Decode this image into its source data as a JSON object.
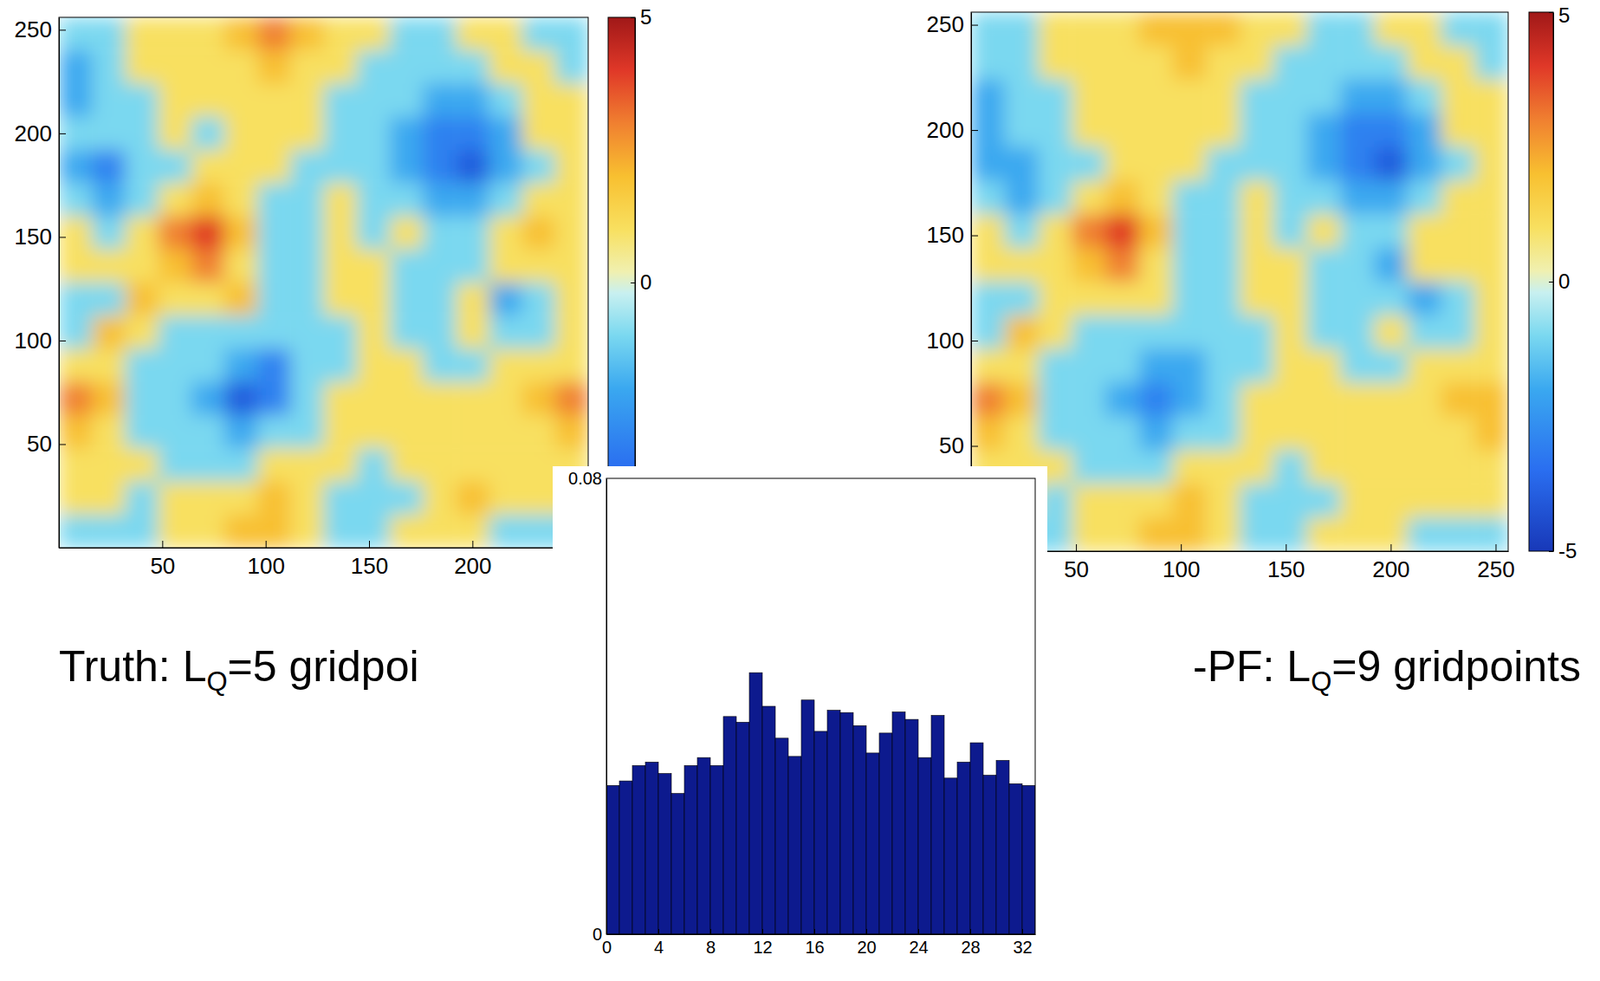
{
  "chart_data": [
    {
      "type": "heatmap",
      "label": [
        "Truth: L",
        "Q",
        "=5 gridpoi"
      ],
      "x": [
        8,
        24,
        40,
        56,
        72,
        88,
        104,
        120,
        136,
        152,
        168,
        184,
        200,
        216,
        232,
        248
      ],
      "y": [
        248,
        232,
        216,
        200,
        184,
        168,
        152,
        136,
        120,
        104,
        88,
        72,
        56,
        40,
        24,
        8
      ],
      "z": [
        [
          -1,
          -1,
          1,
          1,
          1,
          2,
          3,
          2,
          1,
          1,
          -1,
          -1,
          1,
          1,
          -1,
          -1
        ],
        [
          -2,
          -1,
          1,
          1,
          1,
          1,
          2,
          1,
          1,
          -1,
          -1,
          -1,
          -1,
          1,
          1,
          -1
        ],
        [
          -2,
          -1,
          -1,
          1,
          1,
          1,
          1,
          1,
          -1,
          -1,
          -1,
          -2,
          -2,
          -1,
          1,
          1
        ],
        [
          -1,
          -1,
          -1,
          1,
          -1,
          1,
          1,
          1,
          -1,
          -1,
          -2,
          -3,
          -3,
          -2,
          1,
          1
        ],
        [
          -2,
          -3,
          -1,
          -1,
          1,
          1,
          1,
          -1,
          -1,
          -1,
          -2,
          -3,
          -4,
          -2,
          -1,
          1
        ],
        [
          -1,
          -2,
          -1,
          1,
          2,
          1,
          -1,
          -1,
          1,
          -1,
          -1,
          -2,
          -2,
          -1,
          1,
          1
        ],
        [
          1,
          -1,
          1,
          3,
          4,
          2,
          -1,
          -1,
          1,
          -1,
          1,
          -1,
          -1,
          1,
          2,
          1
        ],
        [
          1,
          1,
          1,
          2,
          3,
          1,
          -1,
          -1,
          1,
          1,
          -1,
          -1,
          -1,
          1,
          1,
          1
        ],
        [
          -1,
          -1,
          2,
          1,
          1,
          2,
          -1,
          -1,
          1,
          1,
          -1,
          -1,
          1,
          -2,
          -1,
          1
        ],
        [
          -1,
          2,
          1,
          -1,
          -1,
          -1,
          -1,
          -1,
          -1,
          1,
          -1,
          -1,
          1,
          -1,
          -1,
          1
        ],
        [
          1,
          1,
          -1,
          -1,
          -1,
          -2,
          -3,
          -1,
          -1,
          1,
          1,
          -1,
          -1,
          1,
          1,
          1
        ],
        [
          3,
          2,
          -1,
          -1,
          -2,
          -4,
          -3,
          -1,
          1,
          1,
          1,
          1,
          1,
          1,
          2,
          3
        ],
        [
          2,
          1,
          -1,
          -1,
          -1,
          -2,
          -1,
          -1,
          1,
          1,
          1,
          1,
          1,
          1,
          1,
          2
        ],
        [
          1,
          1,
          1,
          -1,
          -1,
          -1,
          1,
          1,
          1,
          -1,
          1,
          1,
          1,
          1,
          1,
          1
        ],
        [
          1,
          1,
          -1,
          1,
          1,
          1,
          2,
          1,
          -1,
          -1,
          -1,
          1,
          2,
          1,
          1,
          1
        ],
        [
          -1,
          -1,
          -1,
          1,
          1,
          2,
          2,
          1,
          -1,
          -1,
          1,
          1,
          1,
          -1,
          -1,
          -1
        ]
      ],
      "xlim": [
        0,
        256
      ],
      "ylim": [
        0,
        256
      ],
      "xticks": [
        50,
        100,
        150,
        200
      ],
      "yticks": [
        50,
        100,
        150,
        200,
        250
      ],
      "colorbar_lim": [
        -5,
        5
      ],
      "colorbar_ticks": [
        5,
        0
      ]
    },
    {
      "type": "heatmap",
      "label": [
        "-PF: L",
        "Q",
        "=9 gridpoints"
      ],
      "x": [
        8,
        24,
        40,
        56,
        72,
        88,
        104,
        120,
        136,
        152,
        168,
        184,
        200,
        216,
        232,
        248
      ],
      "y": [
        248,
        232,
        216,
        200,
        184,
        168,
        152,
        136,
        120,
        104,
        88,
        72,
        56,
        40,
        24,
        8
      ],
      "z": [
        [
          -1,
          -1,
          1,
          1,
          1,
          2,
          2,
          2,
          1,
          1,
          -1,
          -1,
          1,
          1,
          -1,
          -1
        ],
        [
          -1,
          -1,
          1,
          1,
          1,
          1,
          2,
          1,
          1,
          -1,
          -1,
          -1,
          -1,
          1,
          1,
          -1
        ],
        [
          -2,
          -1,
          -1,
          1,
          1,
          1,
          1,
          1,
          -1,
          -1,
          -1,
          -2,
          -2,
          -1,
          1,
          1
        ],
        [
          -2,
          -1,
          -1,
          1,
          1,
          1,
          1,
          1,
          -1,
          -1,
          -2,
          -3,
          -3,
          -2,
          1,
          1
        ],
        [
          -2,
          -2,
          -1,
          -1,
          1,
          1,
          1,
          -1,
          -1,
          -1,
          -2,
          -3,
          -4,
          -2,
          -1,
          1
        ],
        [
          -1,
          -2,
          -1,
          1,
          2,
          1,
          -1,
          -1,
          1,
          -1,
          -1,
          -2,
          -2,
          -1,
          1,
          1
        ],
        [
          1,
          -1,
          1,
          3,
          4,
          2,
          -1,
          -1,
          1,
          -1,
          1,
          -1,
          -1,
          1,
          1,
          1
        ],
        [
          1,
          1,
          1,
          2,
          3,
          1,
          -1,
          -1,
          1,
          1,
          -1,
          -1,
          -2,
          1,
          1,
          1
        ],
        [
          -1,
          -1,
          1,
          1,
          1,
          1,
          -1,
          -1,
          1,
          1,
          -1,
          -1,
          -1,
          -2,
          -1,
          1
        ],
        [
          -1,
          2,
          1,
          -1,
          -1,
          -1,
          -1,
          -1,
          -1,
          1,
          -1,
          -1,
          1,
          -1,
          -1,
          1
        ],
        [
          1,
          1,
          -1,
          -1,
          -1,
          -2,
          -2,
          -1,
          -1,
          1,
          1,
          -1,
          -1,
          1,
          1,
          1
        ],
        [
          3,
          2,
          -1,
          -1,
          -2,
          -3,
          -2,
          -1,
          1,
          1,
          1,
          1,
          1,
          1,
          2,
          2
        ],
        [
          2,
          1,
          -1,
          -1,
          -1,
          -2,
          -1,
          -1,
          1,
          1,
          1,
          1,
          1,
          1,
          1,
          2
        ],
        [
          1,
          1,
          1,
          -1,
          -1,
          -1,
          1,
          1,
          1,
          -1,
          1,
          1,
          1,
          1,
          1,
          1
        ],
        [
          1,
          1,
          -1,
          1,
          1,
          1,
          2,
          1,
          -1,
          -1,
          -1,
          1,
          1,
          1,
          1,
          1
        ],
        [
          -1,
          -1,
          -1,
          1,
          1,
          2,
          2,
          1,
          -1,
          -1,
          1,
          1,
          1,
          -1,
          -1,
          -1
        ]
      ],
      "xlim": [
        0,
        256
      ],
      "ylim": [
        0,
        256
      ],
      "xticks": [
        50,
        100,
        150,
        200,
        250
      ],
      "yticks": [
        50,
        100,
        150,
        200,
        250
      ],
      "colorbar_lim": [
        -5,
        5
      ],
      "colorbar_ticks": [
        5,
        0,
        -5
      ]
    },
    {
      "type": "histogram",
      "bins": [
        0,
        1,
        2,
        3,
        4,
        5,
        6,
        7,
        8,
        9,
        10,
        11,
        12,
        13,
        14,
        15,
        16,
        17,
        18,
        19,
        20,
        21,
        22,
        23,
        24,
        25,
        26,
        27,
        28,
        29,
        30,
        31,
        32,
        33
      ],
      "values": [
        0.0261,
        0.0269,
        0.0296,
        0.0302,
        0.0282,
        0.0247,
        0.0296,
        0.031,
        0.0296,
        0.0382,
        0.0372,
        0.0459,
        0.04,
        0.0344,
        0.0312,
        0.0411,
        0.0356,
        0.0393,
        0.0389,
        0.0366,
        0.0318,
        0.0353,
        0.039,
        0.0377,
        0.031,
        0.0384,
        0.0274,
        0.0302,
        0.0336,
        0.0279,
        0.0305,
        0.0264,
        0.0261
      ],
      "xlim": [
        0,
        33
      ],
      "ylim": [
        0,
        0.08
      ],
      "xticks": [
        0,
        4,
        8,
        12,
        16,
        20,
        24,
        28,
        32
      ],
      "yticks": [
        0,
        0.08
      ],
      "color": "#0d1a8e"
    }
  ]
}
